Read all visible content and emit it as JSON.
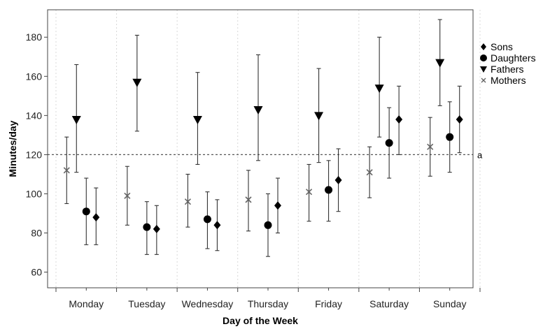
{
  "chart_data": {
    "type": "scatter",
    "xlabel": "Day of the Week",
    "ylabel": "Minutes/day",
    "ylim": [
      52,
      194
    ],
    "yticks": [
      60,
      80,
      100,
      120,
      140,
      160,
      180
    ],
    "categories": [
      "Monday",
      "Tuesday",
      "Wednesday",
      "Thursday",
      "Friday",
      "Saturday",
      "Sunday"
    ],
    "error_bars": true,
    "grid": "vertical dotted",
    "legend_position": "top-right",
    "reference_line": {
      "y": 120,
      "label": "a",
      "style": "dotted"
    },
    "series": [
      {
        "name": "Mothers",
        "marker": "x",
        "color": "#666666",
        "values": [
          112,
          99,
          96,
          97,
          101,
          111,
          124
        ],
        "lower": [
          95,
          84,
          83,
          81,
          86,
          98,
          109
        ],
        "upper": [
          129,
          114,
          110,
          112,
          115,
          124,
          139
        ]
      },
      {
        "name": "Fathers",
        "marker": "triangle-down",
        "color": "#000000",
        "values": [
          138,
          157,
          138,
          143,
          140,
          154,
          167
        ],
        "lower": [
          111,
          132,
          115,
          117,
          116,
          129,
          145
        ],
        "upper": [
          166,
          181,
          162,
          171,
          164,
          180,
          189
        ]
      },
      {
        "name": "Daughters",
        "marker": "circle",
        "color": "#000000",
        "values": [
          91,
          83,
          87,
          84,
          102,
          126,
          129
        ],
        "lower": [
          74,
          69,
          72,
          68,
          86,
          108,
          111
        ],
        "upper": [
          108,
          96,
          101,
          100,
          117,
          144,
          147
        ]
      },
      {
        "name": "Sons",
        "marker": "diamond",
        "color": "#000000",
        "values": [
          88,
          82,
          84,
          94,
          107,
          138,
          138
        ],
        "lower": [
          74,
          69,
          71,
          80,
          91,
          120,
          121
        ],
        "upper": [
          103,
          94,
          97,
          108,
          123,
          155,
          155
        ]
      }
    ],
    "legend": [
      "Sons",
      "Daughters",
      "Fathers",
      "Mothers"
    ]
  }
}
